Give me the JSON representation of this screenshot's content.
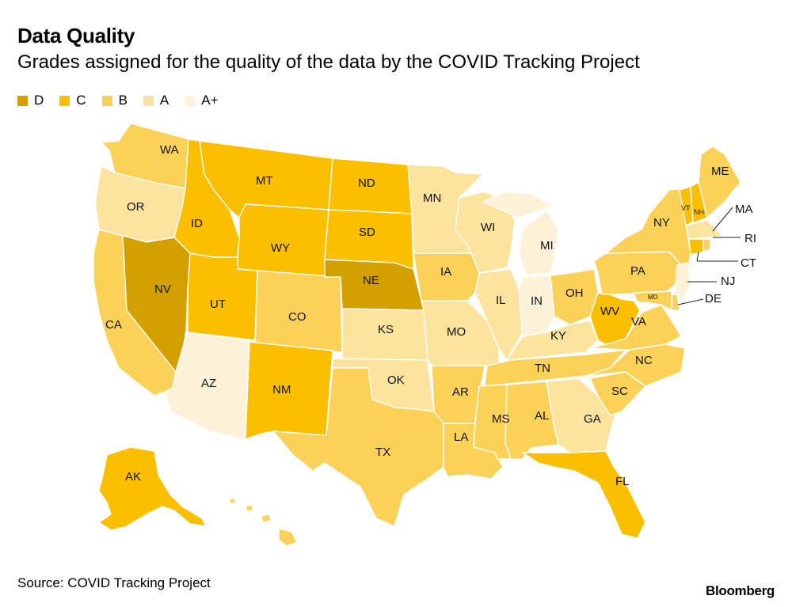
{
  "title": "Data Quality",
  "subtitle": "Grades assigned for the quality of the data by the COVID Tracking Project",
  "legend": [
    {
      "grade": "D",
      "color": "#d4a000"
    },
    {
      "grade": "C",
      "color": "#fbbf00"
    },
    {
      "grade": "B",
      "color": "#fbd157"
    },
    {
      "grade": "A",
      "color": "#fce39e"
    },
    {
      "grade": "A+",
      "color": "#fdf2d7"
    }
  ],
  "states": [
    {
      "abbr": "WA",
      "grade": "B"
    },
    {
      "abbr": "OR",
      "grade": "A"
    },
    {
      "abbr": "CA",
      "grade": "B"
    },
    {
      "abbr": "ID",
      "grade": "C"
    },
    {
      "abbr": "NV",
      "grade": "D"
    },
    {
      "abbr": "AZ",
      "grade": "A+"
    },
    {
      "abbr": "MT",
      "grade": "C"
    },
    {
      "abbr": "WY",
      "grade": "C"
    },
    {
      "abbr": "UT",
      "grade": "C"
    },
    {
      "abbr": "CO",
      "grade": "B"
    },
    {
      "abbr": "NM",
      "grade": "C"
    },
    {
      "abbr": "ND",
      "grade": "C"
    },
    {
      "abbr": "SD",
      "grade": "C"
    },
    {
      "abbr": "NE",
      "grade": "D"
    },
    {
      "abbr": "KS",
      "grade": "A"
    },
    {
      "abbr": "OK",
      "grade": "A"
    },
    {
      "abbr": "TX",
      "grade": "B"
    },
    {
      "abbr": "MN",
      "grade": "A"
    },
    {
      "abbr": "IA",
      "grade": "B"
    },
    {
      "abbr": "MO",
      "grade": "A"
    },
    {
      "abbr": "AR",
      "grade": "B"
    },
    {
      "abbr": "LA",
      "grade": "B"
    },
    {
      "abbr": "WI",
      "grade": "A"
    },
    {
      "abbr": "IL",
      "grade": "A"
    },
    {
      "abbr": "MI",
      "grade": "A+"
    },
    {
      "abbr": "IN",
      "grade": "A+"
    },
    {
      "abbr": "OH",
      "grade": "B"
    },
    {
      "abbr": "KY",
      "grade": "A"
    },
    {
      "abbr": "TN",
      "grade": "B"
    },
    {
      "abbr": "MS",
      "grade": "B"
    },
    {
      "abbr": "AL",
      "grade": "B"
    },
    {
      "abbr": "GA",
      "grade": "A"
    },
    {
      "abbr": "FL",
      "grade": "C"
    },
    {
      "abbr": "SC",
      "grade": "B"
    },
    {
      "abbr": "NC",
      "grade": "B"
    },
    {
      "abbr": "VA",
      "grade": "B"
    },
    {
      "abbr": "WV",
      "grade": "C"
    },
    {
      "abbr": "PA",
      "grade": "B"
    },
    {
      "abbr": "NY",
      "grade": "B"
    },
    {
      "abbr": "VT",
      "grade": "C"
    },
    {
      "abbr": "NH",
      "grade": "C"
    },
    {
      "abbr": "ME",
      "grade": "B"
    },
    {
      "abbr": "MA",
      "grade": "A"
    },
    {
      "abbr": "RI",
      "grade": "B"
    },
    {
      "abbr": "CT",
      "grade": "C"
    },
    {
      "abbr": "NJ",
      "grade": "A+"
    },
    {
      "abbr": "DE",
      "grade": "B"
    },
    {
      "abbr": "MD",
      "grade": "B"
    },
    {
      "abbr": "AK",
      "grade": "C"
    },
    {
      "abbr": "HI",
      "grade": "B"
    }
  ],
  "source": "Source: COVID Tracking Project",
  "brand": "Bloomberg"
}
